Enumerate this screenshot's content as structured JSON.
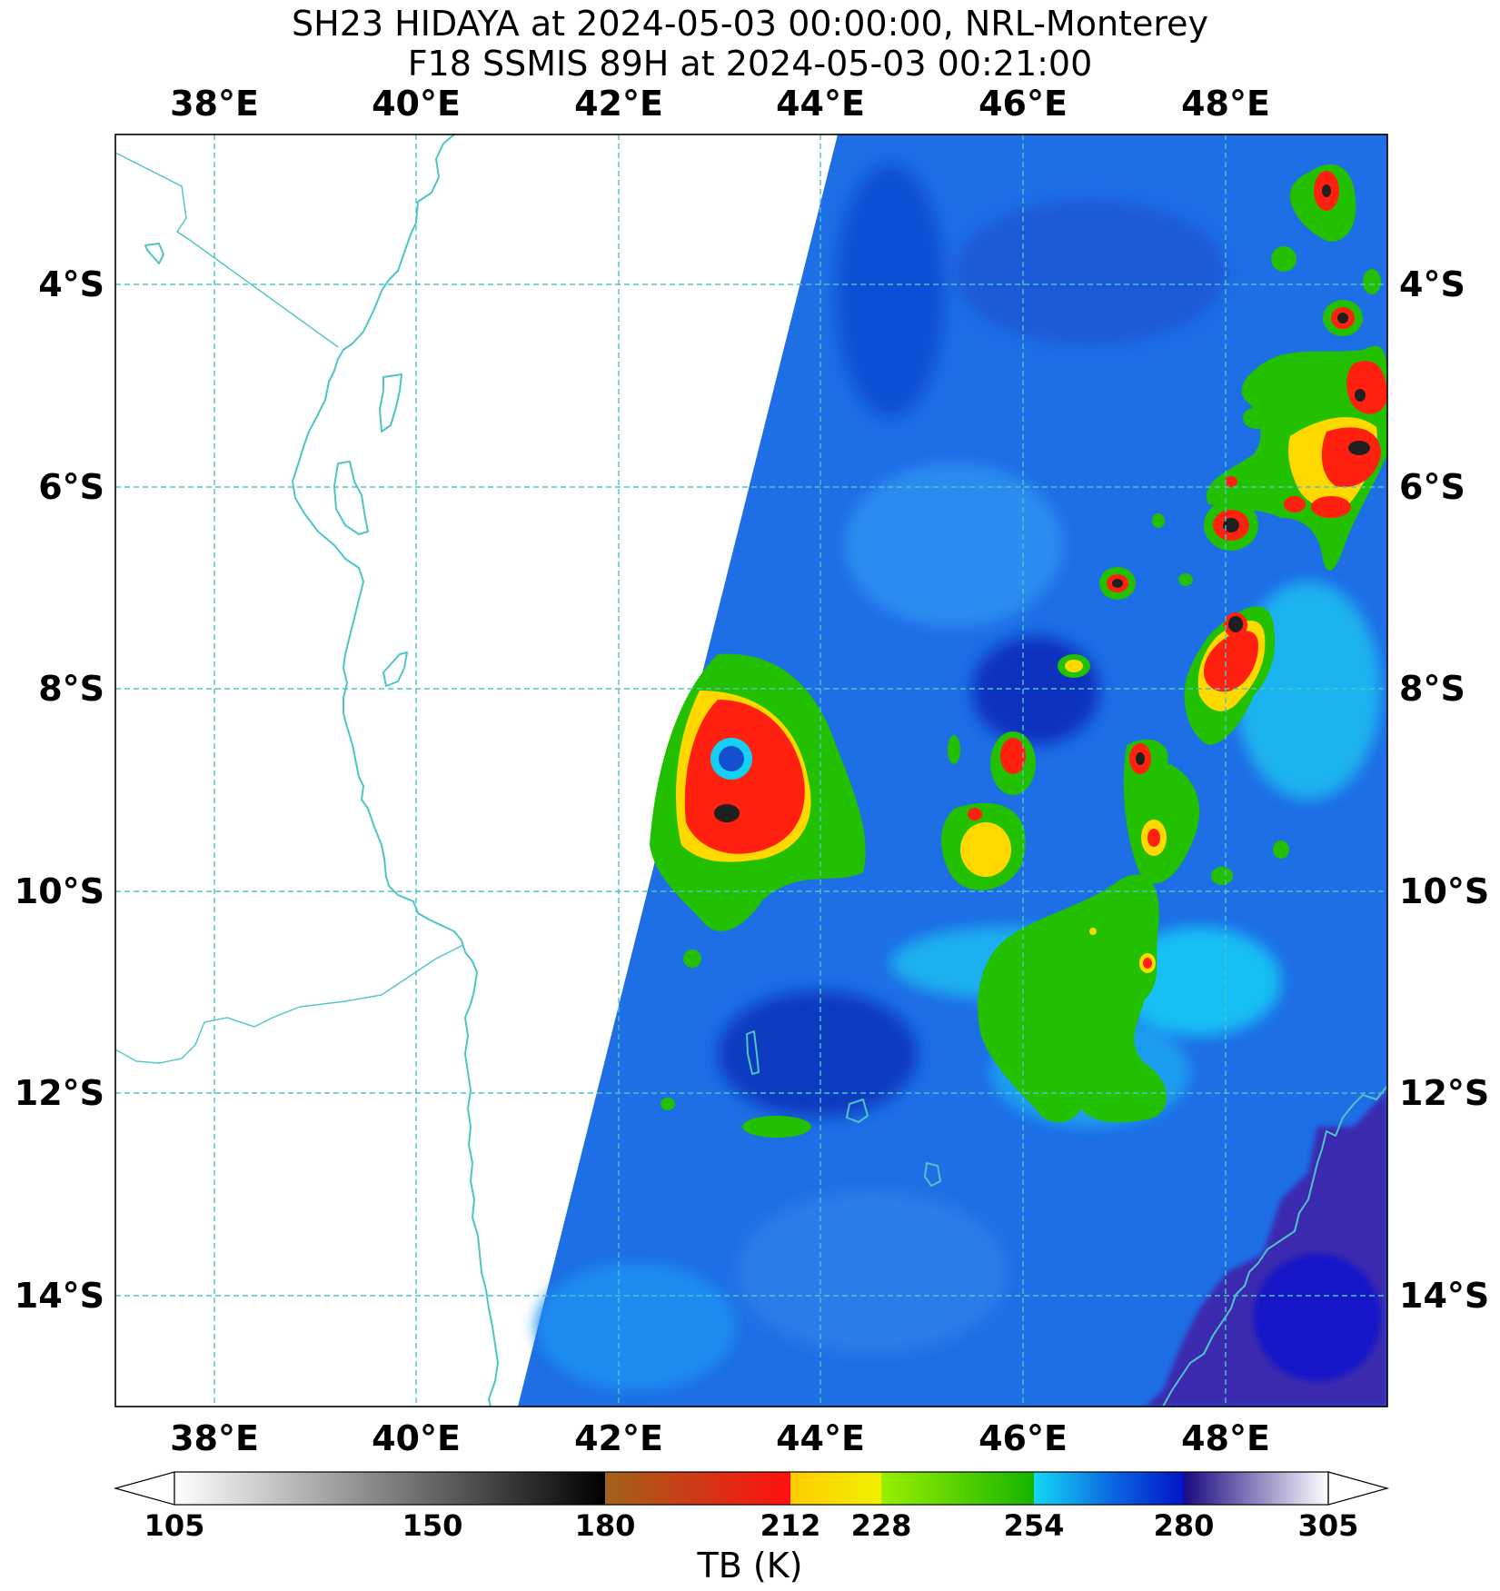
{
  "title": {
    "line1": "SH23 HIDAYA at 2024-05-03 00:00:00, NRL-Monterey",
    "line2": "F18 SSMIS 89H at 2024-05-03 00:21:00"
  },
  "map": {
    "lon_range_deg_e": [
      37,
      49.6
    ],
    "lat_range_deg": [
      -2.5,
      -15.1
    ],
    "lon_labels": [
      "38°E",
      "40°E",
      "42°E",
      "44°E",
      "46°E",
      "48°E"
    ],
    "lat_labels": [
      "4°S",
      "6°S",
      "8°S",
      "10°S",
      "12°S",
      "14°S"
    ],
    "coastline_color": "#4fc4c4",
    "grid_color": "#4fc4c4",
    "gridlines": "dashed"
  },
  "colorbar": {
    "ticks": [
      "105",
      "150",
      "180",
      "212",
      "228",
      "254",
      "280",
      "305"
    ],
    "title": "TB (K)",
    "segments": [
      {
        "from": 105,
        "to": 180,
        "colors": [
          "#ffffff",
          "#000000"
        ]
      },
      {
        "from": 180,
        "to": 212,
        "colors": [
          "#a0621c",
          "#ff0f0f"
        ]
      },
      {
        "from": 212,
        "to": 228,
        "colors": [
          "#ffcc00",
          "#f0f000"
        ]
      },
      {
        "from": 228,
        "to": 254,
        "colors": [
          "#9af000",
          "#16b400"
        ]
      },
      {
        "from": 254,
        "to": 280,
        "colors": [
          "#14d8f5",
          "#0014c8"
        ]
      },
      {
        "from": 280,
        "to": 305,
        "colors": [
          "#1a0a80",
          "#ffffff"
        ]
      }
    ]
  }
}
